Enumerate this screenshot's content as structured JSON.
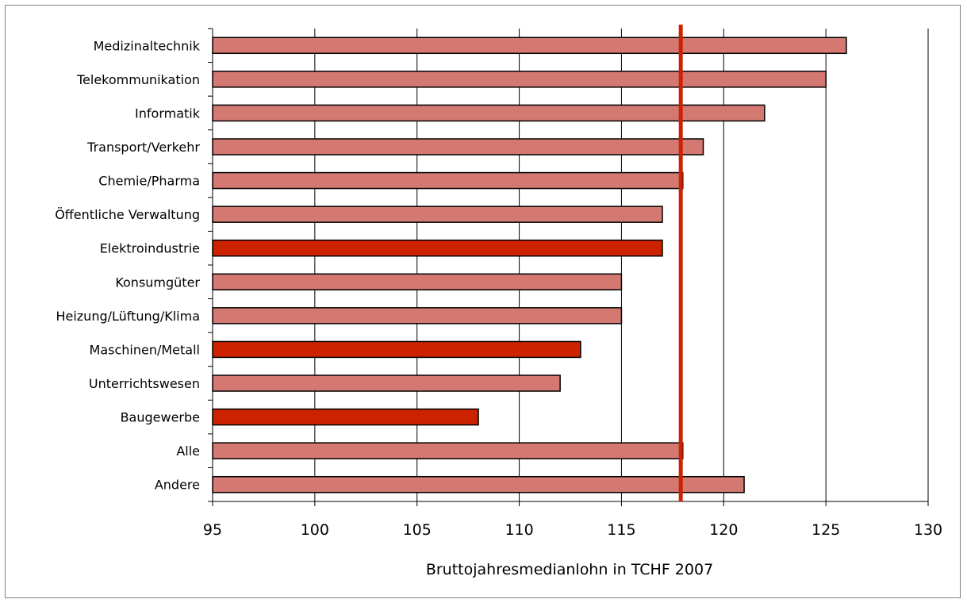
{
  "chart_data": {
    "type": "bar",
    "orientation": "horizontal",
    "categories": [
      "Medizinaltechnik",
      "Telekommunikation",
      "Informatik",
      "Transport/Verkehr",
      "Chemie/Pharma",
      "Öffentliche Verwaltung",
      "Elektroindustrie",
      "Konsumgüter",
      "Heizung/Lüftung/Klima",
      "Maschinen/Metall",
      "Unterrichtswesen",
      "Baugewerbe",
      "Alle",
      "Andere"
    ],
    "values": [
      126,
      125,
      122,
      119,
      118,
      117,
      117,
      115,
      115,
      113,
      112,
      108,
      118,
      121
    ],
    "highlighted": [
      false,
      false,
      false,
      false,
      false,
      false,
      true,
      false,
      false,
      true,
      false,
      true,
      false,
      false
    ],
    "reference_line": {
      "value": 117.9
    },
    "xlabel": "Bruttojahresmedianlohn in TCHF 2007",
    "xlim": [
      95,
      130
    ],
    "xticks": [
      95,
      100,
      105,
      110,
      115,
      120,
      125,
      130
    ],
    "grid": true,
    "colors": {
      "bar": "#d47872",
      "bar_highlight": "#cc2200",
      "reference_line": "#cc2200",
      "gridline": "#000000"
    }
  }
}
